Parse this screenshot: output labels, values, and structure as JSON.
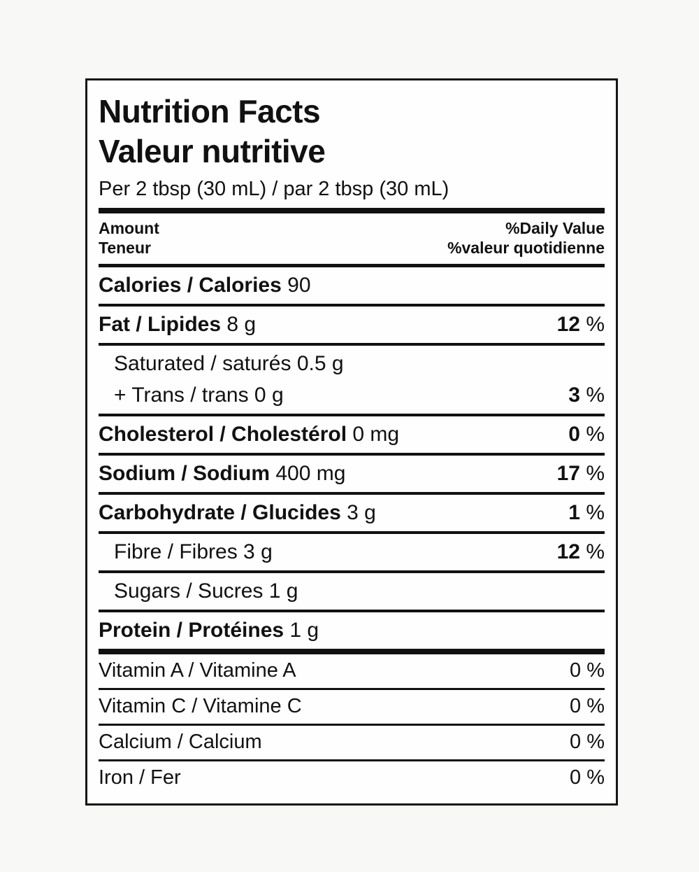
{
  "label": {
    "title_en": "Nutrition Facts",
    "title_fr": "Valeur nutritive",
    "serving": "Per 2 tbsp (30 mL) / par 2 tbsp (30 mL)",
    "header": {
      "amount_en": "Amount",
      "amount_fr": "Teneur",
      "daily_value_en": "%Daily Value",
      "daily_value_fr": "%valeur quotidienne"
    },
    "percent_sign": "%",
    "rows": [
      {
        "key": "calories",
        "label": "Calories / Calories",
        "amount": "90",
        "bold": true,
        "dv": null,
        "sep_after": "rule"
      },
      {
        "key": "fat",
        "label": "Fat / Lipides",
        "amount": "8 g",
        "bold": true,
        "dv": "12",
        "sep_after": "rule"
      },
      {
        "key": "saturated-trans",
        "lines": [
          {
            "label": "Saturated / saturés",
            "amount": "0.5 g"
          },
          {
            "label": "+ Trans / trans",
            "amount": "0 g"
          }
        ],
        "indent": true,
        "bold": false,
        "dv": "3",
        "sep_after": "rule"
      },
      {
        "key": "cholesterol",
        "label": "Cholesterol / Cholestérol",
        "amount": "0 mg",
        "bold": true,
        "dv": "0",
        "sep_after": "rule"
      },
      {
        "key": "sodium",
        "label": "Sodium / Sodium",
        "amount": "400 mg",
        "bold": true,
        "dv": "17",
        "sep_after": "rule"
      },
      {
        "key": "carbohydrate",
        "label": "Carbohydrate / Glucides",
        "amount": "3 g",
        "bold": true,
        "dv": "1",
        "sep_after": "rule"
      },
      {
        "key": "fibre",
        "label": "Fibre / Fibres",
        "amount": "3 g",
        "bold": false,
        "indent": true,
        "dv": "12",
        "sep_after": "rule"
      },
      {
        "key": "sugars",
        "label": "Sugars / Sucres",
        "amount": "1 g",
        "bold": false,
        "indent": true,
        "dv": null,
        "sep_after": "rule"
      },
      {
        "key": "protein",
        "label": "Protein / Protéines",
        "amount": "1 g",
        "bold": true,
        "dv": null,
        "sep_after": "thick"
      }
    ],
    "micronutrients": [
      {
        "key": "vitamin-a",
        "label": "Vitamin A / Vitamine A",
        "dv": "0"
      },
      {
        "key": "vitamin-c",
        "label": "Vitamin C / Vitamine C",
        "dv": "0"
      },
      {
        "key": "calcium",
        "label": "Calcium / Calcium",
        "dv": "0"
      },
      {
        "key": "iron",
        "label": "Iron / Fer",
        "dv": "0"
      }
    ]
  }
}
